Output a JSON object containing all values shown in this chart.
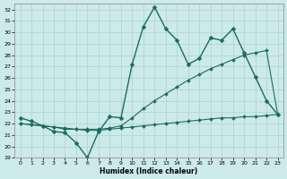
{
  "xlabel": "Humidex (Indice chaleur)",
  "background_color": "#cceae7",
  "line_color": "#1a6b60",
  "xlim": [
    -0.5,
    23.5
  ],
  "ylim": [
    19,
    32.5
  ],
  "yticks": [
    19,
    20,
    21,
    22,
    23,
    24,
    25,
    26,
    27,
    28,
    29,
    30,
    31,
    32
  ],
  "xticks": [
    0,
    1,
    2,
    3,
    4,
    5,
    6,
    7,
    8,
    9,
    10,
    11,
    12,
    13,
    14,
    15,
    16,
    17,
    18,
    19,
    20,
    21,
    22,
    23
  ],
  "series": [
    {
      "x": [
        0,
        1,
        2,
        3,
        4,
        5,
        6,
        7,
        8,
        9,
        10,
        11,
        12,
        13,
        14,
        15,
        16,
        17,
        18,
        19,
        20,
        21,
        22,
        23
      ],
      "y": [
        22.5,
        22.2,
        21.8,
        21.3,
        21.2,
        20.3,
        19.0,
        21.3,
        22.6,
        22.5,
        27.2,
        30.5,
        32.2,
        30.3,
        29.3,
        27.2,
        27.7,
        29.5,
        29.3,
        30.3,
        28.2,
        26.1,
        24.0,
        22.8
      ],
      "marker": "D",
      "markersize": 2.5,
      "linewidth": 1.0
    },
    {
      "x": [
        0,
        1,
        2,
        3,
        4,
        5,
        6,
        7,
        8,
        9,
        10,
        11,
        12,
        13,
        14,
        15,
        16,
        17,
        18,
        19,
        20,
        21,
        22,
        23
      ],
      "y": [
        22.0,
        21.9,
        21.8,
        21.7,
        21.5,
        21.5,
        21.5,
        21.5,
        21.6,
        21.8,
        22.5,
        23.3,
        24.0,
        24.6,
        25.2,
        25.8,
        26.3,
        26.8,
        27.2,
        27.6,
        28.0,
        28.2,
        28.4,
        22.8
      ],
      "marker": "D",
      "markersize": 2.0,
      "linewidth": 0.8
    },
    {
      "x": [
        0,
        1,
        2,
        3,
        4,
        5,
        6,
        7,
        8,
        9,
        10,
        11,
        12,
        13,
        14,
        15,
        16,
        17,
        18,
        19,
        20,
        21,
        22,
        23
      ],
      "y": [
        22.0,
        21.9,
        21.8,
        21.7,
        21.6,
        21.5,
        21.4,
        21.4,
        21.5,
        21.6,
        21.7,
        21.8,
        21.9,
        22.0,
        22.1,
        22.2,
        22.3,
        22.4,
        22.5,
        22.5,
        22.6,
        22.6,
        22.7,
        22.8
      ],
      "marker": "D",
      "markersize": 2.0,
      "linewidth": 0.8
    }
  ]
}
